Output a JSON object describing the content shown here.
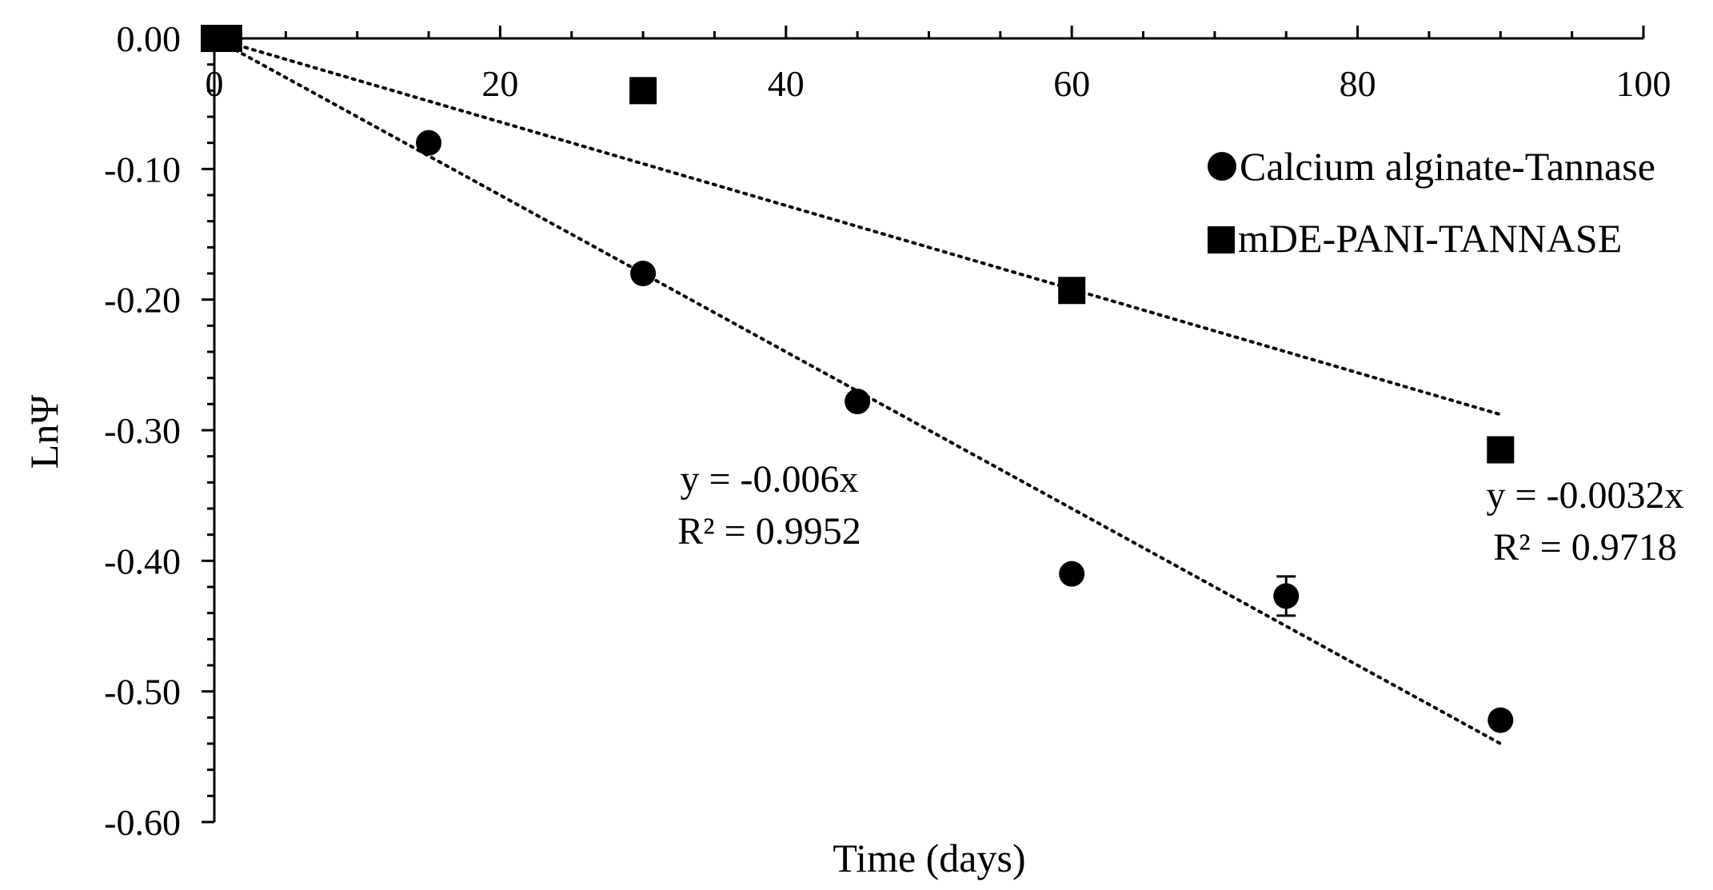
{
  "chart_data": {
    "type": "scatter",
    "title": "",
    "xlabel": "Time (days)",
    "ylabel": "LnΨ",
    "xlim": [
      0,
      100
    ],
    "ylim": [
      -0.6,
      0
    ],
    "x_ticks": [
      0,
      20,
      40,
      60,
      80,
      100
    ],
    "x_tick_labels": [
      "0",
      "20",
      "40",
      "60",
      "80",
      "100"
    ],
    "x_minor_step": 5,
    "y_ticks": [
      0,
      -0.1,
      -0.2,
      -0.3,
      -0.4,
      -0.5,
      -0.6
    ],
    "y_tick_labels": [
      "0.00",
      "-0.10",
      "-0.20",
      "-0.30",
      "-0.40",
      "-0.50",
      "-0.60"
    ],
    "y_minor_step": 0.02,
    "x_axis_position": "top",
    "grid": false,
    "legend_position": "top-right",
    "series": [
      {
        "name": "Calcium alginate-Tannase",
        "marker": "circle",
        "color": "#000000",
        "x": [
          0,
          1,
          15,
          30,
          45,
          60,
          75,
          90
        ],
        "y": [
          0,
          0,
          -0.08,
          -0.18,
          -0.278,
          -0.41,
          -0.427,
          -0.522
        ],
        "error": [
          0,
          0,
          0,
          0,
          0,
          0,
          0.015,
          0
        ],
        "trendline": {
          "slope": -0.006,
          "x_range": [
            0,
            90
          ],
          "equation": "y = -0.006x",
          "r2": "R² = 0.9952"
        }
      },
      {
        "name": "mDE-PANI-TANNASE",
        "marker": "square",
        "color": "#000000",
        "x": [
          0,
          1,
          30,
          60,
          90
        ],
        "y": [
          0,
          0,
          -0.04,
          -0.193,
          -0.315
        ],
        "error": [
          0,
          0,
          0,
          0,
          0
        ],
        "trendline": {
          "slope": -0.0032,
          "x_range": [
            0,
            90
          ],
          "equation": "y = -0.0032x",
          "r2": "R² = 0.9718"
        }
      }
    ]
  }
}
